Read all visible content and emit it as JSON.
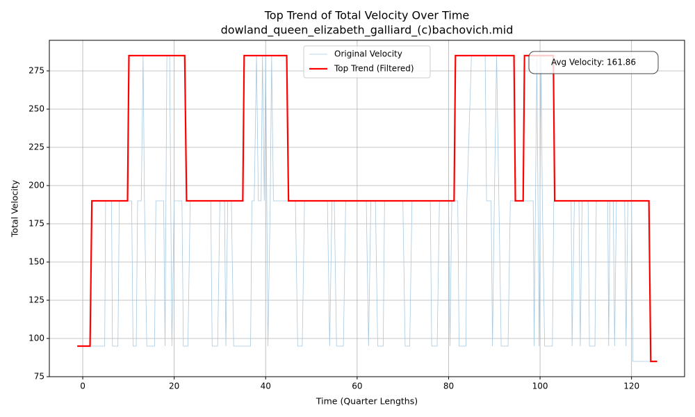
{
  "chart_data": {
    "type": "line",
    "title": "Top Trend of Total Velocity Over Time",
    "subtitle": "dowland_queen_elizabeth_galliard_(c)bachovich.mid",
    "x_label": "Time (Quarter Lengths)",
    "y_label": "Total Velocity",
    "annotation": "Avg Velocity: 161.86",
    "xlim": [
      -7.3,
      131.6
    ],
    "ylim": [
      75,
      295
    ],
    "xticks": [
      0,
      20,
      40,
      60,
      80,
      100,
      120
    ],
    "yticks": [
      75,
      100,
      125,
      150,
      175,
      200,
      225,
      250,
      275
    ],
    "grid": true,
    "legend": "upper center",
    "series": [
      {
        "name": "Original Velocity",
        "color": "#a6c8e0",
        "linewidth": 0.8,
        "x": [
          2,
          4.8,
          5,
          6.3,
          6.5,
          7.7,
          8,
          10.7,
          11,
          11.7,
          12,
          12.8,
          13.2,
          13.5,
          14,
          15.7,
          16,
          17.7,
          18,
          18.4,
          19,
          19.5,
          20,
          21.7,
          22,
          23,
          23.5,
          28,
          28.3,
          29.5,
          30,
          31,
          31.3,
          31.7,
          32.5,
          33,
          36.7,
          37,
          37.5,
          38,
          38.4,
          39,
          39.3,
          39.7,
          40,
          40.5,
          41,
          41.3,
          41.7,
          45,
          46.5,
          47,
          48,
          48.5,
          53.5,
          54,
          54.5,
          55,
          55.5,
          57,
          57.5,
          62,
          62.5,
          63,
          64,
          64.5,
          65.7,
          66,
          70,
          70.5,
          71.5,
          72,
          76,
          76.3,
          77.5,
          78,
          80,
          80.3,
          80.7,
          82,
          82.3,
          83.8,
          84,
          85,
          88,
          88.3,
          89.3,
          89.6,
          90,
          90.5,
          91,
          91.5,
          93,
          93.5,
          98.5,
          98.7,
          99.3,
          99.8,
          100.2,
          100.5,
          101,
          102.7,
          103,
          106.8,
          107,
          107.5,
          108.5,
          108.8,
          109.2,
          110.5,
          110.8,
          112,
          112.3,
          114.8,
          115,
          115.3,
          116,
          116.3,
          116.7,
          118.5,
          118.8,
          119.2,
          120,
          120.3,
          124
        ],
        "values": [
          95,
          95,
          190,
          190,
          95,
          95,
          190,
          190,
          95,
          95,
          190,
          190,
          285,
          190,
          95,
          95,
          190,
          190,
          95,
          285,
          285,
          95,
          190,
          190,
          95,
          95,
          190,
          190,
          95,
          95,
          190,
          190,
          95,
          190,
          190,
          95,
          95,
          190,
          190,
          285,
          190,
          190,
          285,
          190,
          285,
          95,
          190,
          285,
          190,
          190,
          190,
          95,
          95,
          190,
          190,
          95,
          190,
          190,
          95,
          95,
          190,
          190,
          95,
          190,
          190,
          95,
          95,
          190,
          190,
          95,
          95,
          190,
          190,
          95,
          95,
          190,
          190,
          95,
          190,
          190,
          95,
          95,
          190,
          285,
          285,
          190,
          190,
          95,
          190,
          285,
          190,
          95,
          95,
          190,
          190,
          95,
          285,
          95,
          285,
          190,
          95,
          95,
          190,
          190,
          95,
          190,
          190,
          95,
          190,
          190,
          95,
          95,
          190,
          190,
          95,
          190,
          190,
          95,
          190,
          190,
          95,
          190,
          190,
          85,
          85
        ]
      },
      {
        "name": "Top Trend (Filtered)",
        "color": "#ff0000",
        "linewidth": 2.2,
        "x": [
          -1.2,
          1.6,
          2,
          9.8,
          10.1,
          22.3,
          22.7,
          35,
          35.3,
          44.6,
          45,
          81.2,
          81.5,
          94.3,
          94.6,
          96.3,
          96.6,
          102.9,
          103.2,
          123.8,
          124.2,
          125.6
        ],
        "values": [
          95,
          95,
          190,
          190,
          285,
          285,
          190,
          190,
          285,
          285,
          190,
          190,
          285,
          285,
          190,
          190,
          285,
          285,
          190,
          190,
          85,
          85
        ]
      }
    ]
  }
}
